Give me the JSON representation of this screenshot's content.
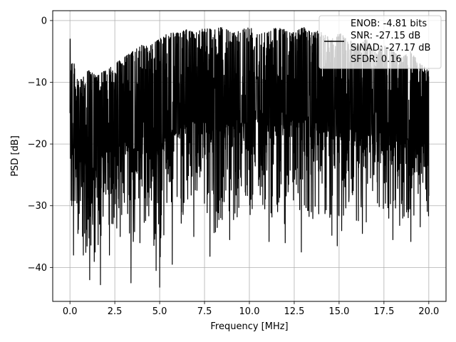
{
  "chart_data": {
    "type": "line",
    "title": "",
    "xlabel": "Frequency [MHz]",
    "ylabel": "PSD [dB]",
    "xlim": [
      -0.96,
      20.96
    ],
    "ylim": [
      -45.5,
      1.6
    ],
    "xticks": [
      0.0,
      2.5,
      5.0,
      7.5,
      10.0,
      12.5,
      15.0,
      17.5,
      20.0
    ],
    "xtick_labels": [
      "0.0",
      "2.5",
      "5.0",
      "7.5",
      "10.0",
      "12.5",
      "15.0",
      "17.5",
      "20.0"
    ],
    "yticks": [
      0,
      -10,
      -20,
      -30,
      -40
    ],
    "ytick_labels": [
      "0",
      "−10",
      "−20",
      "−30",
      "−40"
    ],
    "grid": true,
    "legend_position": "top-right",
    "legend_lines": [
      "ENOB: -4.81 bits",
      "SNR: -27.15 dB",
      "SINAD: -27.17 dB",
      "SFDR: 0.16"
    ],
    "series": [
      {
        "color": "#000000",
        "envelope": {
          "x": [
            0.0,
            0.05,
            0.5,
            1.0,
            1.5,
            2.0,
            2.5,
            3.0,
            3.5,
            4.0,
            4.5,
            5.0,
            5.5,
            6.0,
            6.5,
            7.0,
            7.5,
            8.0,
            8.5,
            9.0,
            9.5,
            10.0,
            10.5,
            11.0,
            11.5,
            12.0,
            12.5,
            13.0,
            13.5,
            14.0,
            14.5,
            15.0,
            15.5,
            16.0,
            16.5,
            17.0,
            17.5,
            18.0,
            18.5,
            19.0,
            19.5,
            20.0
          ],
          "upper": [
            -3,
            -5,
            -10,
            -8,
            -9,
            -8,
            -7,
            -6,
            -5,
            -4,
            -4,
            -3,
            -2,
            -2,
            -1.5,
            -2,
            -1,
            -1.5,
            -1,
            -2,
            -1.5,
            -1,
            -1.5,
            -2,
            -1,
            -1.5,
            -2,
            -1,
            -2,
            -1.5,
            -3,
            -2,
            -3,
            -4,
            -3,
            -5,
            -4,
            -5,
            -6,
            -5,
            -7,
            -8
          ],
          "lower": [
            -16,
            -38,
            -36,
            -42,
            -43,
            -34,
            -38,
            -36,
            -41,
            -36,
            -40,
            -43,
            -36,
            -37,
            -35,
            -32,
            -35,
            -38,
            -35,
            -36,
            -34,
            -36,
            -33,
            -35,
            -35,
            -36,
            -33,
            -34,
            -35,
            -34,
            -37,
            -39,
            -34,
            -35,
            -36,
            -35,
            -35,
            -35,
            -36,
            -36,
            -36,
            -34
          ]
        },
        "notches": [
          {
            "x": 0.2,
            "y": -38.0
          },
          {
            "x": 0.45,
            "y": -34.5
          },
          {
            "x": 0.75,
            "y": -38.0
          },
          {
            "x": 1.1,
            "y": -42.0
          },
          {
            "x": 1.4,
            "y": -37.5
          },
          {
            "x": 1.7,
            "y": -42.8
          },
          {
            "x": 2.2,
            "y": -38.0
          },
          {
            "x": 2.8,
            "y": -35.0
          },
          {
            "x": 3.4,
            "y": -42.5
          },
          {
            "x": 3.9,
            "y": -36.0
          },
          {
            "x": 4.8,
            "y": -40.5
          },
          {
            "x": 5.0,
            "y": -43.2
          },
          {
            "x": 5.7,
            "y": -39.5
          },
          {
            "x": 6.9,
            "y": -35.0
          },
          {
            "x": 7.8,
            "y": -38.2
          },
          {
            "x": 8.9,
            "y": -35.5
          },
          {
            "x": 11.1,
            "y": -35.8
          },
          {
            "x": 12.0,
            "y": -36.0
          },
          {
            "x": 12.9,
            "y": -37.5
          },
          {
            "x": 14.6,
            "y": -34.8
          },
          {
            "x": 14.9,
            "y": -36.5
          },
          {
            "x": 16.3,
            "y": -34.5
          },
          {
            "x": 18.0,
            "y": -35.5
          },
          {
            "x": 19.0,
            "y": -35.8
          }
        ]
      }
    ]
  }
}
